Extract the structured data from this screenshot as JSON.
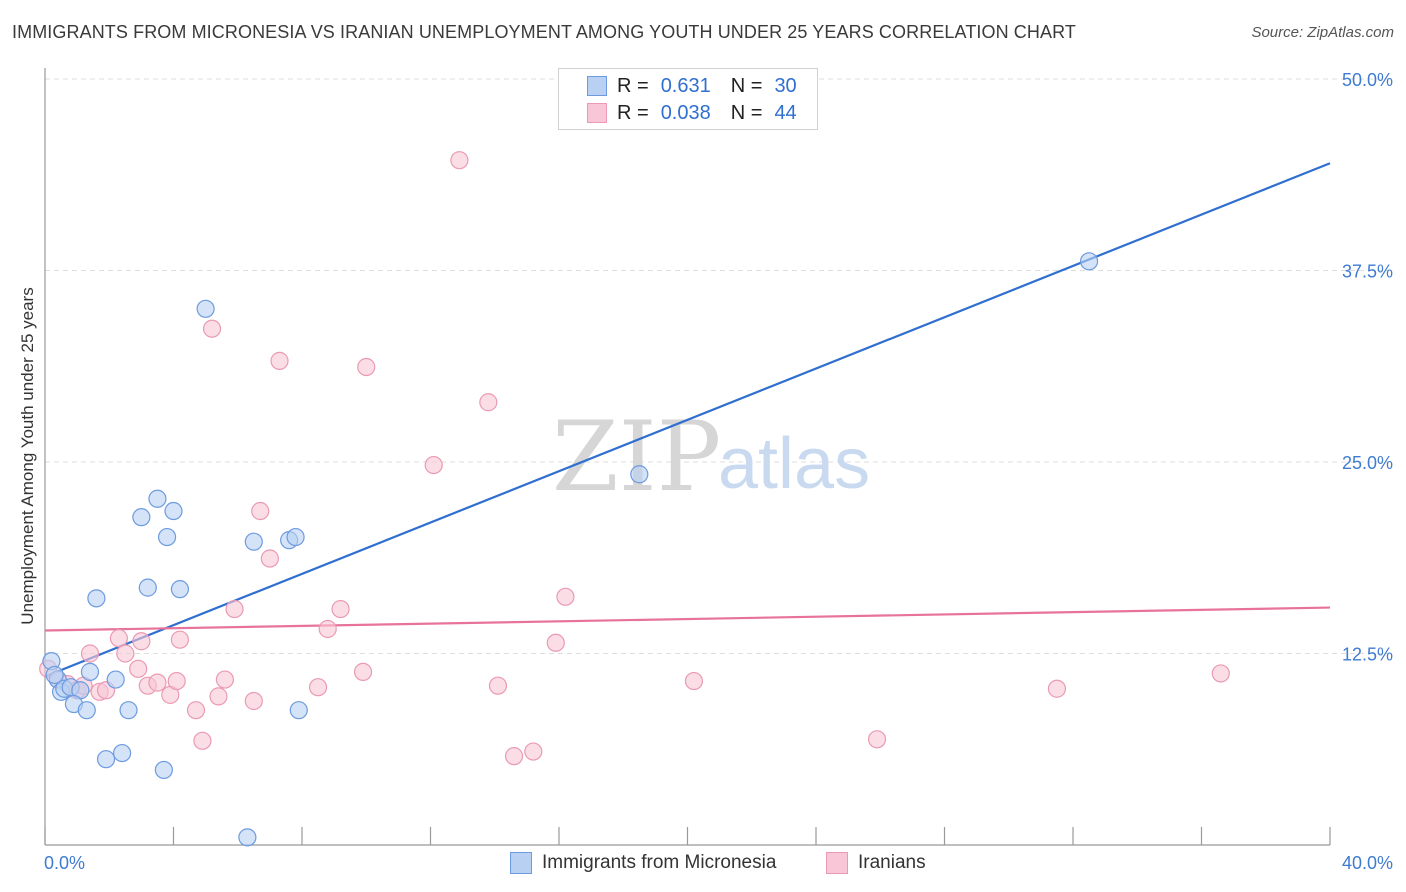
{
  "title": "IMMIGRANTS FROM MICRONESIA VS IRANIAN UNEMPLOYMENT AMONG YOUTH UNDER 25 YEARS CORRELATION CHART",
  "source": "Source: ZipAtlas.com",
  "watermark": {
    "zip": "ZIP",
    "atlas": "atlas"
  },
  "colors": {
    "blue": "#2f6fcf",
    "blue_fill": "#b8d0f2",
    "pink": "#e8739a",
    "pink_fill": "#f8c6d6",
    "grid": "#dddddd",
    "axis_label": "#3f7bd0"
  },
  "legend_top": {
    "rows": [
      {
        "r_label": "R =",
        "r_value": "0.631",
        "n_label": "N =",
        "n_value": "30",
        "series": "blue"
      },
      {
        "r_label": "R =",
        "r_value": "0.038",
        "n_label": "N =",
        "n_value": "44",
        "series": "pink"
      }
    ]
  },
  "legend_bottom": [
    {
      "label": "Immigrants from Micronesia",
      "series": "blue"
    },
    {
      "label": "Iranians",
      "series": "pink"
    }
  ],
  "chart_data": {
    "type": "scatter",
    "title": "IMMIGRANTS FROM MICRONESIA VS IRANIAN UNEMPLOYMENT AMONG YOUTH UNDER 25 YEARS CORRELATION CHART",
    "xlabel": "",
    "ylabel": "Unemployment Among Youth under 25 years",
    "xlim": [
      0,
      40
    ],
    "ylim": [
      0,
      50
    ],
    "x_tick_labels": [
      "0.0%",
      "40.0%"
    ],
    "y_ticks": [
      12.5,
      25.0,
      37.5,
      50.0
    ],
    "y_tick_labels": [
      "12.5%",
      "25.0%",
      "37.5%",
      "50.0%"
    ],
    "grid": true,
    "legend_placement": "top-center",
    "series": [
      {
        "name": "Immigrants from Micronesia",
        "color": "#2f6fcf",
        "R": 0.631,
        "N": 30,
        "trend": {
          "x": [
            0,
            40
          ],
          "y": [
            11.0,
            44.5
          ]
        },
        "points": [
          [
            0.2,
            12.0
          ],
          [
            0.4,
            10.8
          ],
          [
            0.5,
            10.0
          ],
          [
            0.6,
            10.2
          ],
          [
            0.8,
            10.3
          ],
          [
            1.1,
            10.1
          ],
          [
            0.9,
            9.2
          ],
          [
            1.3,
            8.8
          ],
          [
            1.4,
            11.3
          ],
          [
            1.6,
            16.1
          ],
          [
            1.9,
            5.6
          ],
          [
            2.2,
            10.8
          ],
          [
            2.4,
            6.0
          ],
          [
            2.6,
            8.8
          ],
          [
            3.0,
            21.4
          ],
          [
            3.2,
            16.8
          ],
          [
            3.5,
            22.6
          ],
          [
            3.8,
            20.1
          ],
          [
            3.7,
            4.9
          ],
          [
            4.0,
            21.8
          ],
          [
            4.2,
            16.7
          ],
          [
            5.0,
            35.0
          ],
          [
            6.3,
            0.5
          ],
          [
            6.5,
            19.8
          ],
          [
            7.6,
            19.9
          ],
          [
            7.8,
            20.1
          ],
          [
            7.9,
            8.8
          ],
          [
            18.5,
            24.2
          ],
          [
            32.5,
            38.1
          ],
          [
            0.3,
            11.1
          ]
        ]
      },
      {
        "name": "Iranians",
        "color": "#e8739a",
        "R": 0.038,
        "N": 44,
        "trend": {
          "x": [
            0,
            40
          ],
          "y": [
            14.0,
            15.5
          ]
        },
        "points": [
          [
            0.1,
            11.5
          ],
          [
            0.4,
            10.8
          ],
          [
            0.7,
            10.5
          ],
          [
            1.0,
            10.1
          ],
          [
            1.2,
            10.4
          ],
          [
            1.4,
            12.5
          ],
          [
            1.7,
            10.0
          ],
          [
            1.9,
            10.1
          ],
          [
            2.3,
            13.5
          ],
          [
            2.5,
            12.5
          ],
          [
            2.9,
            11.5
          ],
          [
            3.0,
            13.3
          ],
          [
            3.2,
            10.4
          ],
          [
            3.5,
            10.6
          ],
          [
            3.9,
            9.8
          ],
          [
            4.1,
            10.7
          ],
          [
            4.2,
            13.4
          ],
          [
            4.7,
            8.8
          ],
          [
            4.9,
            6.8
          ],
          [
            5.2,
            33.7
          ],
          [
            5.4,
            9.7
          ],
          [
            5.6,
            10.8
          ],
          [
            5.9,
            15.4
          ],
          [
            6.5,
            9.4
          ],
          [
            6.7,
            21.8
          ],
          [
            7.0,
            18.7
          ],
          [
            7.3,
            31.6
          ],
          [
            8.5,
            10.3
          ],
          [
            8.8,
            14.1
          ],
          [
            9.2,
            15.4
          ],
          [
            9.9,
            11.3
          ],
          [
            10.0,
            31.2
          ],
          [
            12.1,
            24.8
          ],
          [
            12.9,
            44.7
          ],
          [
            13.8,
            28.9
          ],
          [
            14.1,
            10.4
          ],
          [
            14.6,
            5.8
          ],
          [
            15.2,
            6.1
          ],
          [
            15.9,
            13.2
          ],
          [
            16.2,
            16.2
          ],
          [
            20.2,
            10.7
          ],
          [
            25.9,
            6.9
          ],
          [
            31.5,
            10.2
          ],
          [
            36.6,
            11.2
          ]
        ]
      }
    ]
  }
}
